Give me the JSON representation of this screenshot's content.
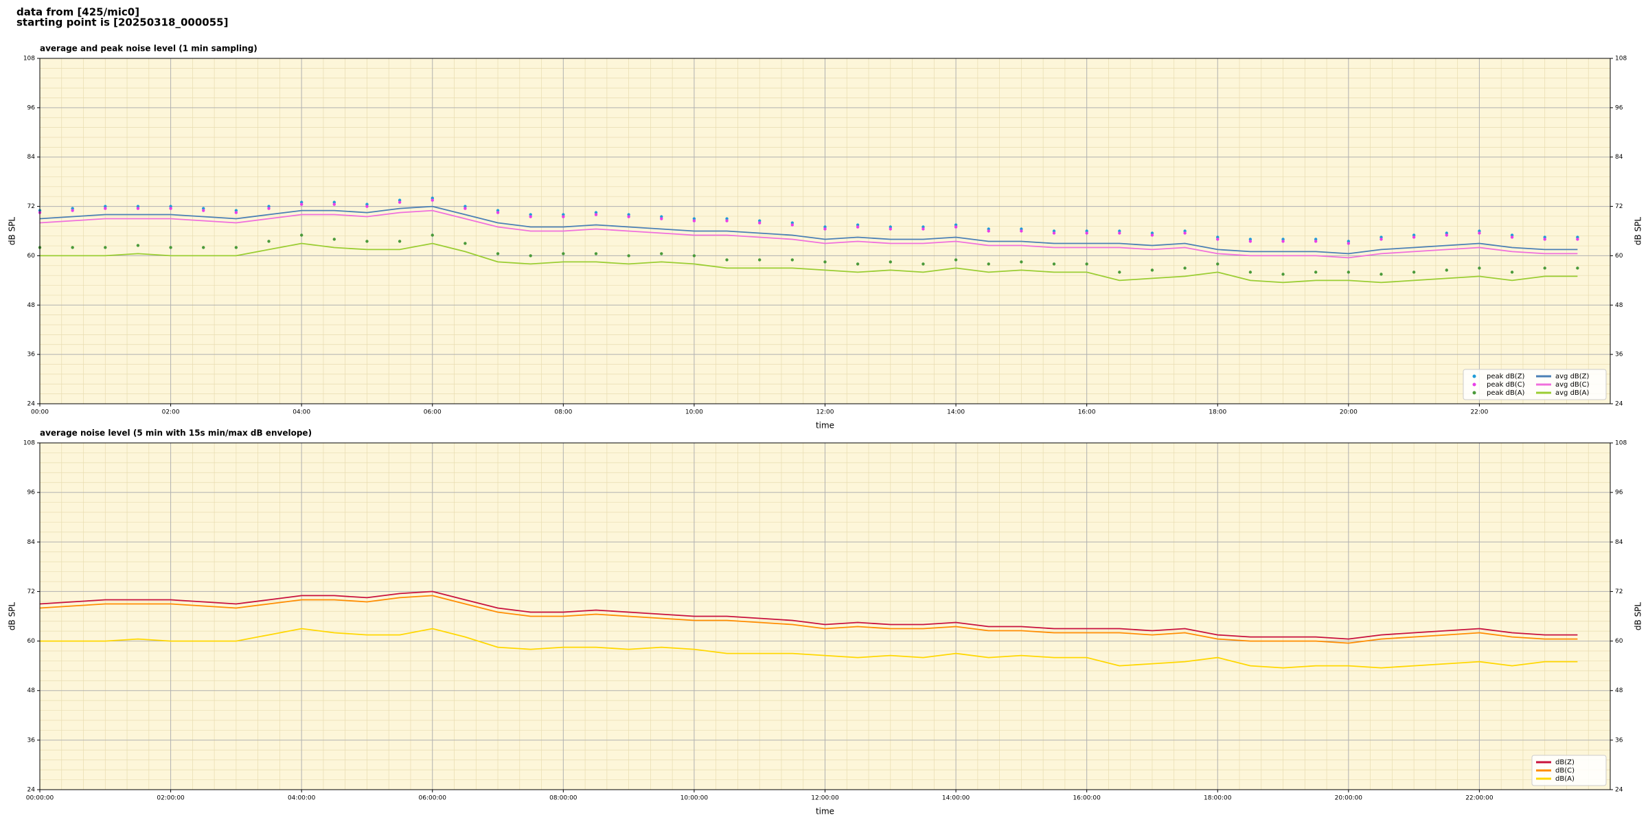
{
  "header": {
    "lines": [
      "data from [425/mic0]",
      "starting point is [20250318_000055]"
    ]
  },
  "chart_data": [
    {
      "type": "line",
      "title": "average and peak noise level (1 min sampling)",
      "x_label": "time",
      "y_label": "dB SPL",
      "plot_background": "#fdf6d9",
      "xlim": [
        "00:00",
        "24:00"
      ],
      "ylim": [
        24,
        108
      ],
      "xticks": [
        "00:00",
        "02:00",
        "04:00",
        "06:00",
        "08:00",
        "10:00",
        "12:00",
        "14:00",
        "16:00",
        "18:00",
        "20:00",
        "22:00"
      ],
      "yticks": [
        24,
        36,
        48,
        60,
        72,
        84,
        96,
        108
      ],
      "grid": true,
      "minor_grid": true,
      "right_axis_labels": true,
      "legend": "lower right",
      "legend_columns": 2,
      "x": [
        "00:00",
        "00:30",
        "01:00",
        "01:30",
        "02:00",
        "02:30",
        "03:00",
        "03:30",
        "04:00",
        "04:30",
        "05:00",
        "05:30",
        "06:00",
        "06:30",
        "07:00",
        "07:30",
        "08:00",
        "08:30",
        "09:00",
        "09:30",
        "10:00",
        "10:30",
        "11:00",
        "11:30",
        "12:00",
        "12:30",
        "13:00",
        "13:30",
        "14:00",
        "14:30",
        "15:00",
        "15:30",
        "16:00",
        "16:30",
        "17:00",
        "17:30",
        "18:00",
        "18:30",
        "19:00",
        "19:30",
        "20:00",
        "20:30",
        "21:00",
        "21:30",
        "22:00",
        "22:30",
        "23:00",
        "23:30"
      ],
      "series": [
        {
          "name": "peak dB(Z)",
          "style": "dots",
          "color": "#1f9bd8",
          "values": [
            71,
            71.5,
            72,
            72,
            72,
            71.5,
            71,
            72,
            73,
            73,
            72.5,
            73.5,
            74,
            72,
            71,
            70,
            70,
            70.5,
            70,
            69.5,
            69,
            69,
            68.5,
            68,
            67,
            67.5,
            67,
            67,
            67.5,
            66.5,
            66.5,
            66,
            66,
            66,
            65.5,
            66,
            64.5,
            64,
            64,
            64,
            63.5,
            64.5,
            65,
            65.5,
            66,
            65,
            64.5,
            64.5
          ]
        },
        {
          "name": "peak dB(C)",
          "style": "dots",
          "color": "#e83fe8",
          "values": [
            70.5,
            71,
            71.5,
            71.5,
            71.5,
            71,
            70.5,
            71.5,
            72.5,
            72.5,
            72,
            73,
            73.5,
            71.5,
            70.5,
            69.5,
            69.5,
            70,
            69.5,
            69,
            68.5,
            68.5,
            68,
            67.5,
            66.5,
            67,
            66.5,
            66.5,
            67,
            66,
            66,
            65.5,
            65.5,
            65.5,
            65,
            65.5,
            64,
            63.5,
            63.5,
            63.5,
            63,
            64,
            64.5,
            65,
            65.5,
            64.5,
            64,
            64
          ]
        },
        {
          "name": "peak dB(A)",
          "style": "dots",
          "color": "#4a9a3a",
          "values": [
            62,
            62,
            62,
            62.5,
            62,
            62,
            62,
            63.5,
            65,
            64,
            63.5,
            63.5,
            65,
            63,
            60.5,
            60,
            60.5,
            60.5,
            60,
            60.5,
            60,
            59,
            59,
            59,
            58.5,
            58,
            58.5,
            58,
            59,
            58,
            58.5,
            58,
            58,
            56,
            56.5,
            57,
            58,
            56,
            55.5,
            56,
            56,
            55.5,
            56,
            56.5,
            57,
            56,
            57,
            57
          ]
        },
        {
          "name": "avg dB(Z)",
          "style": "line",
          "color": "#4a7fb5",
          "values": [
            69,
            69.5,
            70,
            70,
            70,
            69.5,
            69,
            70,
            71,
            71,
            70.5,
            71.5,
            72,
            70,
            68,
            67,
            67,
            67.5,
            67,
            66.5,
            66,
            66,
            65.5,
            65,
            64,
            64.5,
            64,
            64,
            64.5,
            63.5,
            63.5,
            63,
            63,
            63,
            62.5,
            63,
            61.5,
            61,
            61,
            61,
            60.5,
            61.5,
            62,
            62.5,
            63,
            62,
            61.5,
            61.5
          ]
        },
        {
          "name": "avg dB(C)",
          "style": "line",
          "color": "#f06fdc",
          "values": [
            68,
            68.5,
            69,
            69,
            69,
            68.5,
            68,
            69,
            70,
            70,
            69.5,
            70.5,
            71,
            69,
            67,
            66,
            66,
            66.5,
            66,
            65.5,
            65,
            65,
            64.5,
            64,
            63,
            63.5,
            63,
            63,
            63.5,
            62.5,
            62.5,
            62,
            62,
            62,
            61.5,
            62,
            60.5,
            60,
            60,
            60,
            59.5,
            60.5,
            61,
            61.5,
            62,
            61,
            60.5,
            60.5
          ]
        },
        {
          "name": "avg dB(A)",
          "style": "line",
          "color": "#9acd32",
          "values": [
            60,
            60,
            60,
            60.5,
            60,
            60,
            60,
            61.5,
            63,
            62,
            61.5,
            61.5,
            63,
            61,
            58.5,
            58,
            58.5,
            58.5,
            58,
            58.5,
            58,
            57,
            57,
            57,
            56.5,
            56,
            56.5,
            56,
            57,
            56,
            56.5,
            56,
            56,
            54,
            54.5,
            55,
            56,
            54,
            53.5,
            54,
            54,
            53.5,
            54,
            54.5,
            55,
            54,
            55,
            55
          ]
        }
      ]
    },
    {
      "type": "line",
      "title": "average noise level (5 min with 15s min/max dB envelope)",
      "x_label": "time",
      "y_label": "dB SPL",
      "plot_background": "#fdf6d9",
      "xlim": [
        "00:00:00",
        "24:00:00"
      ],
      "ylim": [
        24,
        108
      ],
      "xticks": [
        "00:00:00",
        "02:00:00",
        "04:00:00",
        "06:00:00",
        "08:00:00",
        "10:00:00",
        "12:00:00",
        "14:00:00",
        "16:00:00",
        "18:00:00",
        "20:00:00",
        "22:00:00"
      ],
      "yticks": [
        24,
        36,
        48,
        60,
        72,
        84,
        96,
        108
      ],
      "grid": true,
      "minor_grid": true,
      "right_axis_labels": true,
      "legend": "lower right",
      "legend_columns": 1,
      "x": [
        "00:00:00",
        "00:30:00",
        "01:00:00",
        "01:30:00",
        "02:00:00",
        "02:30:00",
        "03:00:00",
        "03:30:00",
        "04:00:00",
        "04:30:00",
        "05:00:00",
        "05:30:00",
        "06:00:00",
        "06:30:00",
        "07:00:00",
        "07:30:00",
        "08:00:00",
        "08:30:00",
        "09:00:00",
        "09:30:00",
        "10:00:00",
        "10:30:00",
        "11:00:00",
        "11:30:00",
        "12:00:00",
        "12:30:00",
        "13:00:00",
        "13:30:00",
        "14:00:00",
        "14:30:00",
        "15:00:00",
        "15:30:00",
        "16:00:00",
        "16:30:00",
        "17:00:00",
        "17:30:00",
        "18:00:00",
        "18:30:00",
        "19:00:00",
        "19:30:00",
        "20:00:00",
        "20:30:00",
        "21:00:00",
        "21:30:00",
        "22:00:00",
        "22:30:00",
        "23:00:00",
        "23:30:00"
      ],
      "series": [
        {
          "name": "dB(Z)",
          "style": "line",
          "color": "#c8103c",
          "values": [
            69,
            69.5,
            70,
            70,
            70,
            69.5,
            69,
            70,
            71,
            71,
            70.5,
            71.5,
            72,
            70,
            68,
            67,
            67,
            67.5,
            67,
            66.5,
            66,
            66,
            65.5,
            65,
            64,
            64.5,
            64,
            64,
            64.5,
            63.5,
            63.5,
            63,
            63,
            63,
            62.5,
            63,
            61.5,
            61,
            61,
            61,
            60.5,
            61.5,
            62,
            62.5,
            63,
            62,
            61.5,
            61.5
          ]
        },
        {
          "name": "dB(C)",
          "style": "line",
          "color": "#ff8c00",
          "values": [
            68,
            68.5,
            69,
            69,
            69,
            68.5,
            68,
            69,
            70,
            70,
            69.5,
            70.5,
            71,
            69,
            67,
            66,
            66,
            66.5,
            66,
            65.5,
            65,
            65,
            64.5,
            64,
            63,
            63.5,
            63,
            63,
            63.5,
            62.5,
            62.5,
            62,
            62,
            62,
            61.5,
            62,
            60.5,
            60,
            60,
            60,
            59.5,
            60.5,
            61,
            61.5,
            62,
            61,
            60.5,
            60.5
          ]
        },
        {
          "name": "dB(A)",
          "style": "line",
          "color": "#ffd700",
          "values": [
            60,
            60,
            60,
            60.5,
            60,
            60,
            60,
            61.5,
            63,
            62,
            61.5,
            61.5,
            63,
            61,
            58.5,
            58,
            58.5,
            58.5,
            58,
            58.5,
            58,
            57,
            57,
            57,
            56.5,
            56,
            56.5,
            56,
            57,
            56,
            56.5,
            56,
            56,
            54,
            54.5,
            55,
            56,
            54,
            53.5,
            54,
            54,
            53.5,
            54,
            54.5,
            55,
            54,
            55,
            55
          ]
        }
      ]
    }
  ]
}
